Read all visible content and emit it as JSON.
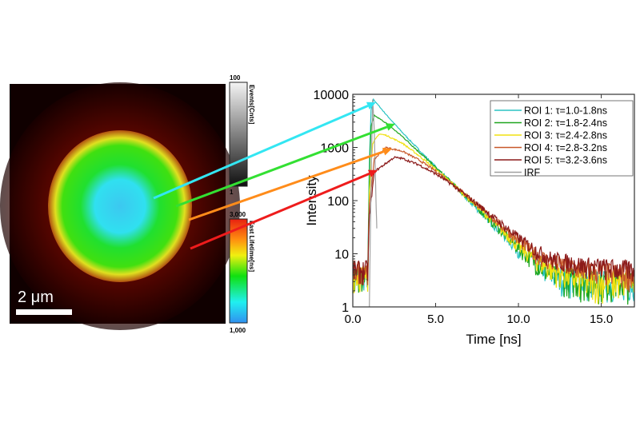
{
  "image": {
    "scale_bar_label": "2 μm",
    "colorbar_events": {
      "label": "Events[Cnts]",
      "max": "100",
      "min": "1"
    },
    "colorbar_lifetime": {
      "label": "Fast Lifetime[ns]",
      "max": "3,000",
      "min": "1,000"
    }
  },
  "arrow_colors": [
    "#33e6f2",
    "#33e033",
    "#ff8c1a",
    "#ee1c1c"
  ],
  "chart_data": {
    "type": "line",
    "xlabel": "Time [ns]",
    "ylabel": "Intensity",
    "xlim": [
      0,
      17
    ],
    "ylim": [
      1,
      10000
    ],
    "yscale": "log",
    "xticks": [
      "0.0",
      "5.0",
      "10.0",
      "15.0"
    ],
    "yticks": [
      "1",
      "10",
      "100",
      "1000",
      "10000"
    ],
    "legend_position": "top-right",
    "grid": false,
    "series": [
      {
        "name": "ROI 1: τ=1.0-1.8ns",
        "color": "#2bc4c4",
        "points": [
          [
            0,
            4
          ],
          [
            0.9,
            4
          ],
          [
            1.0,
            500
          ],
          [
            1.1,
            5000
          ],
          [
            1.25,
            8000
          ],
          [
            2,
            4200
          ],
          [
            3,
            1900
          ],
          [
            4,
            900
          ],
          [
            5,
            430
          ],
          [
            6,
            210
          ],
          [
            7,
            100
          ],
          [
            8,
            50
          ],
          [
            9,
            25
          ],
          [
            10,
            12
          ],
          [
            11,
            7
          ],
          [
            12,
            4
          ],
          [
            14,
            3
          ],
          [
            17,
            3
          ]
        ]
      },
      {
        "name": "ROI 2: τ=1.8-2.4ns",
        "color": "#1fa61f",
        "points": [
          [
            0,
            4
          ],
          [
            0.9,
            4
          ],
          [
            1.0,
            300
          ],
          [
            1.1,
            2500
          ],
          [
            1.3,
            4000
          ],
          [
            2,
            2900
          ],
          [
            3,
            1600
          ],
          [
            4,
            820
          ],
          [
            5,
            420
          ],
          [
            6,
            215
          ],
          [
            7,
            105
          ],
          [
            8,
            52
          ],
          [
            9,
            26
          ],
          [
            10,
            13
          ],
          [
            11,
            7
          ],
          [
            12,
            4
          ],
          [
            14,
            3
          ],
          [
            17,
            3
          ]
        ]
      },
      {
        "name": "ROI 3: τ=2.4-2.8ns",
        "color": "#f0e010",
        "points": [
          [
            0,
            4
          ],
          [
            0.9,
            4
          ],
          [
            1.0,
            150
          ],
          [
            1.2,
            1200
          ],
          [
            1.6,
            1800
          ],
          [
            2,
            1700
          ],
          [
            3,
            1200
          ],
          [
            4,
            700
          ],
          [
            5,
            390
          ],
          [
            6,
            210
          ],
          [
            7,
            110
          ],
          [
            8,
            56
          ],
          [
            9,
            28
          ],
          [
            10,
            14
          ],
          [
            11,
            8
          ],
          [
            12,
            5
          ],
          [
            14,
            3
          ],
          [
            17,
            3
          ]
        ]
      },
      {
        "name": "ROI 4: τ=2.8-3.2ns",
        "color": "#c8582a",
        "points": [
          [
            0,
            5
          ],
          [
            0.9,
            5
          ],
          [
            1.0,
            80
          ],
          [
            1.3,
            600
          ],
          [
            2,
            1000
          ],
          [
            3,
            850
          ],
          [
            4,
            580
          ],
          [
            5,
            360
          ],
          [
            6,
            210
          ],
          [
            7,
            115
          ],
          [
            8,
            62
          ],
          [
            9,
            33
          ],
          [
            10,
            18
          ],
          [
            11,
            10
          ],
          [
            12,
            7
          ],
          [
            14,
            5
          ],
          [
            17,
            4
          ]
        ]
      },
      {
        "name": "ROI 5: τ=3.2-3.6ns",
        "color": "#8b1a1a",
        "points": [
          [
            0,
            5
          ],
          [
            0.9,
            5
          ],
          [
            1.0,
            50
          ],
          [
            1.3,
            350
          ],
          [
            2.5,
            650
          ],
          [
            3,
            620
          ],
          [
            4,
            470
          ],
          [
            5,
            320
          ],
          [
            6,
            200
          ],
          [
            7,
            115
          ],
          [
            8,
            65
          ],
          [
            9,
            36
          ],
          [
            10,
            20
          ],
          [
            11,
            12
          ],
          [
            12,
            8
          ],
          [
            14,
            6
          ],
          [
            17,
            5
          ]
        ]
      },
      {
        "name": "IRF",
        "color": "#a0a0a0",
        "points": [
          [
            1.0,
            1
          ],
          [
            1.1,
            200
          ],
          [
            1.2,
            8000
          ],
          [
            1.3,
            2000
          ],
          [
            1.4,
            100
          ],
          [
            1.45,
            30
          ]
        ]
      }
    ]
  }
}
